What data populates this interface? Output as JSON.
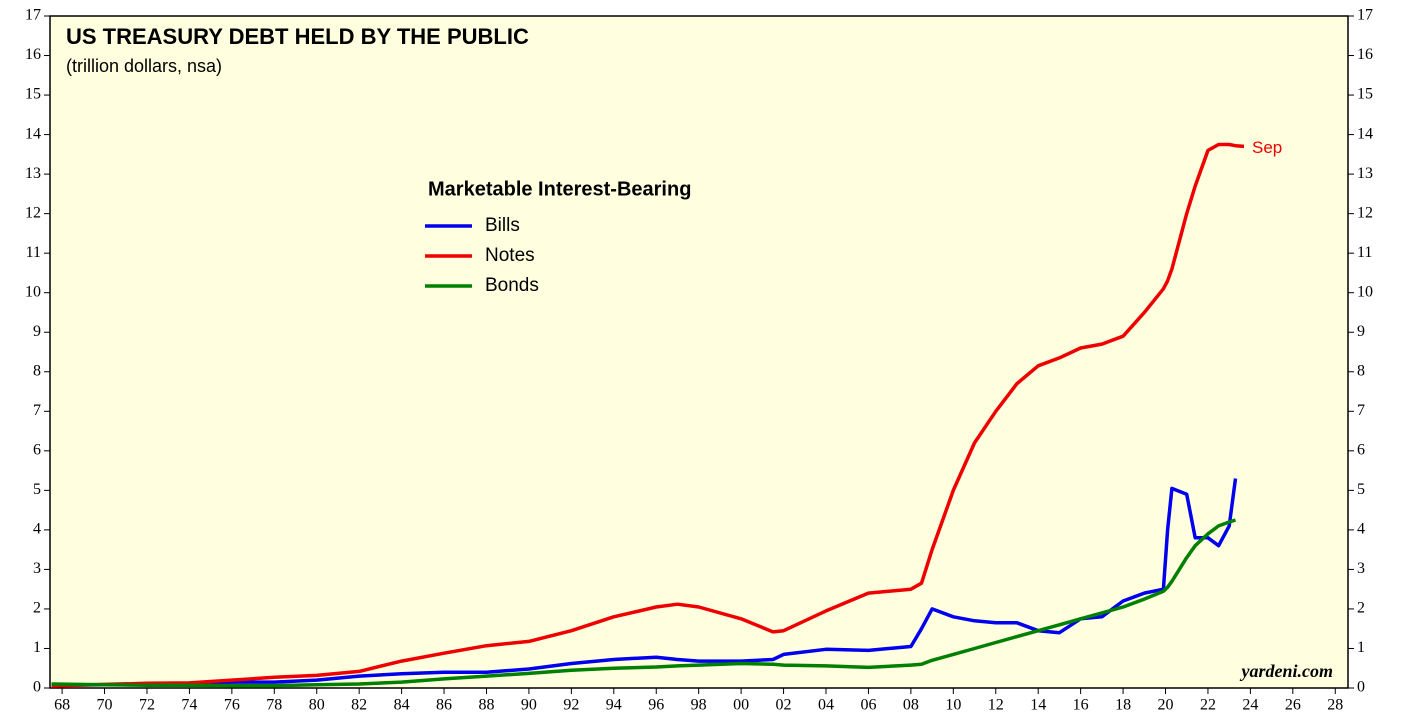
{
  "chart_data": {
    "type": "line",
    "title": "US TREASURY DEBT HELD BY THE PUBLIC",
    "subtitle": "(trillion dollars, nsa)",
    "legend_title": "Marketable Interest-Bearing",
    "legend": "upper center",
    "annotations": [
      "Sep",
      "yardeni.com"
    ],
    "x": [
      1967.5,
      1970,
      1972,
      1974,
      1976,
      1978,
      1980,
      1982,
      1984,
      1986,
      1988,
      1990,
      1992,
      1994,
      1996,
      1997,
      1998,
      2000,
      2001.5,
      2002,
      2004,
      2006,
      2008,
      2008.5,
      2009,
      2010,
      2011,
      2012,
      2013,
      2014,
      2015,
      2016,
      2017,
      2018,
      2019,
      2019.9,
      2020.1,
      2020.3,
      2021,
      2021.4,
      2022,
      2022.5,
      2023,
      2023.3,
      2023.7
    ],
    "series": [
      {
        "name": "Bills",
        "color": "#0000ee",
        "values": [
          0.07,
          0.08,
          0.1,
          0.11,
          0.15,
          0.15,
          0.2,
          0.3,
          0.36,
          0.4,
          0.4,
          0.48,
          0.62,
          0.72,
          0.78,
          0.72,
          0.68,
          0.68,
          0.72,
          0.85,
          0.98,
          0.95,
          1.05,
          1.5,
          2.0,
          1.8,
          1.7,
          1.65,
          1.65,
          1.45,
          1.4,
          1.75,
          1.8,
          2.2,
          2.4,
          2.5,
          4.0,
          5.05,
          4.9,
          3.8,
          3.8,
          3.6,
          4.1,
          5.3,
          null
        ]
      },
      {
        "name": "Notes",
        "color": "#ee0000",
        "values": [
          0.05,
          0.09,
          0.12,
          0.13,
          0.2,
          0.27,
          0.32,
          0.42,
          0.68,
          0.88,
          1.07,
          1.18,
          1.45,
          1.8,
          2.05,
          2.12,
          2.05,
          1.75,
          1.42,
          1.45,
          1.95,
          2.4,
          2.5,
          2.65,
          3.5,
          5.0,
          6.2,
          7.0,
          7.7,
          8.15,
          8.35,
          8.6,
          8.7,
          8.9,
          9.5,
          10.1,
          10.3,
          10.6,
          12.0,
          12.7,
          13.6,
          13.75,
          13.75,
          13.72,
          13.7
        ]
      },
      {
        "name": "Bonds",
        "color": "#008000",
        "values": [
          0.1,
          0.08,
          0.07,
          0.07,
          0.06,
          0.06,
          0.08,
          0.1,
          0.15,
          0.23,
          0.3,
          0.37,
          0.45,
          0.5,
          0.53,
          0.56,
          0.58,
          0.62,
          0.6,
          0.58,
          0.56,
          0.52,
          0.58,
          0.6,
          0.7,
          0.85,
          1.0,
          1.15,
          1.3,
          1.45,
          1.6,
          1.75,
          1.9,
          2.05,
          2.25,
          2.45,
          2.55,
          2.7,
          3.3,
          3.6,
          3.9,
          4.1,
          4.2,
          4.25,
          null
        ]
      }
    ],
    "xlim": [
      1967.43,
      2028.6
    ],
    "xticks": [
      {
        "value": 1968,
        "label": "68"
      },
      {
        "value": 1970,
        "label": "70"
      },
      {
        "value": 1972,
        "label": "72"
      },
      {
        "value": 1974,
        "label": "74"
      },
      {
        "value": 1976,
        "label": "76"
      },
      {
        "value": 1978,
        "label": "78"
      },
      {
        "value": 1980,
        "label": "80"
      },
      {
        "value": 1982,
        "label": "82"
      },
      {
        "value": 1984,
        "label": "84"
      },
      {
        "value": 1986,
        "label": "86"
      },
      {
        "value": 1988,
        "label": "88"
      },
      {
        "value": 1990,
        "label": "90"
      },
      {
        "value": 1992,
        "label": "92"
      },
      {
        "value": 1994,
        "label": "94"
      },
      {
        "value": 1996,
        "label": "96"
      },
      {
        "value": 1998,
        "label": "98"
      },
      {
        "value": 2000,
        "label": "00"
      },
      {
        "value": 2002,
        "label": "02"
      },
      {
        "value": 2004,
        "label": "04"
      },
      {
        "value": 2006,
        "label": "06"
      },
      {
        "value": 2008,
        "label": "08"
      },
      {
        "value": 2010,
        "label": "10"
      },
      {
        "value": 2012,
        "label": "12"
      },
      {
        "value": 2014,
        "label": "14"
      },
      {
        "value": 2016,
        "label": "16"
      },
      {
        "value": 2018,
        "label": "18"
      },
      {
        "value": 2020,
        "label": "20"
      },
      {
        "value": 2022,
        "label": "22"
      },
      {
        "value": 2024,
        "label": "24"
      },
      {
        "value": 2026,
        "label": "26"
      },
      {
        "value": 2028,
        "label": "28"
      }
    ],
    "ylim": [
      0,
      17
    ],
    "yticks": [
      0,
      1,
      2,
      3,
      4,
      5,
      6,
      7,
      8,
      9,
      10,
      11,
      12,
      13,
      14,
      15,
      16,
      17
    ],
    "grid": false
  }
}
